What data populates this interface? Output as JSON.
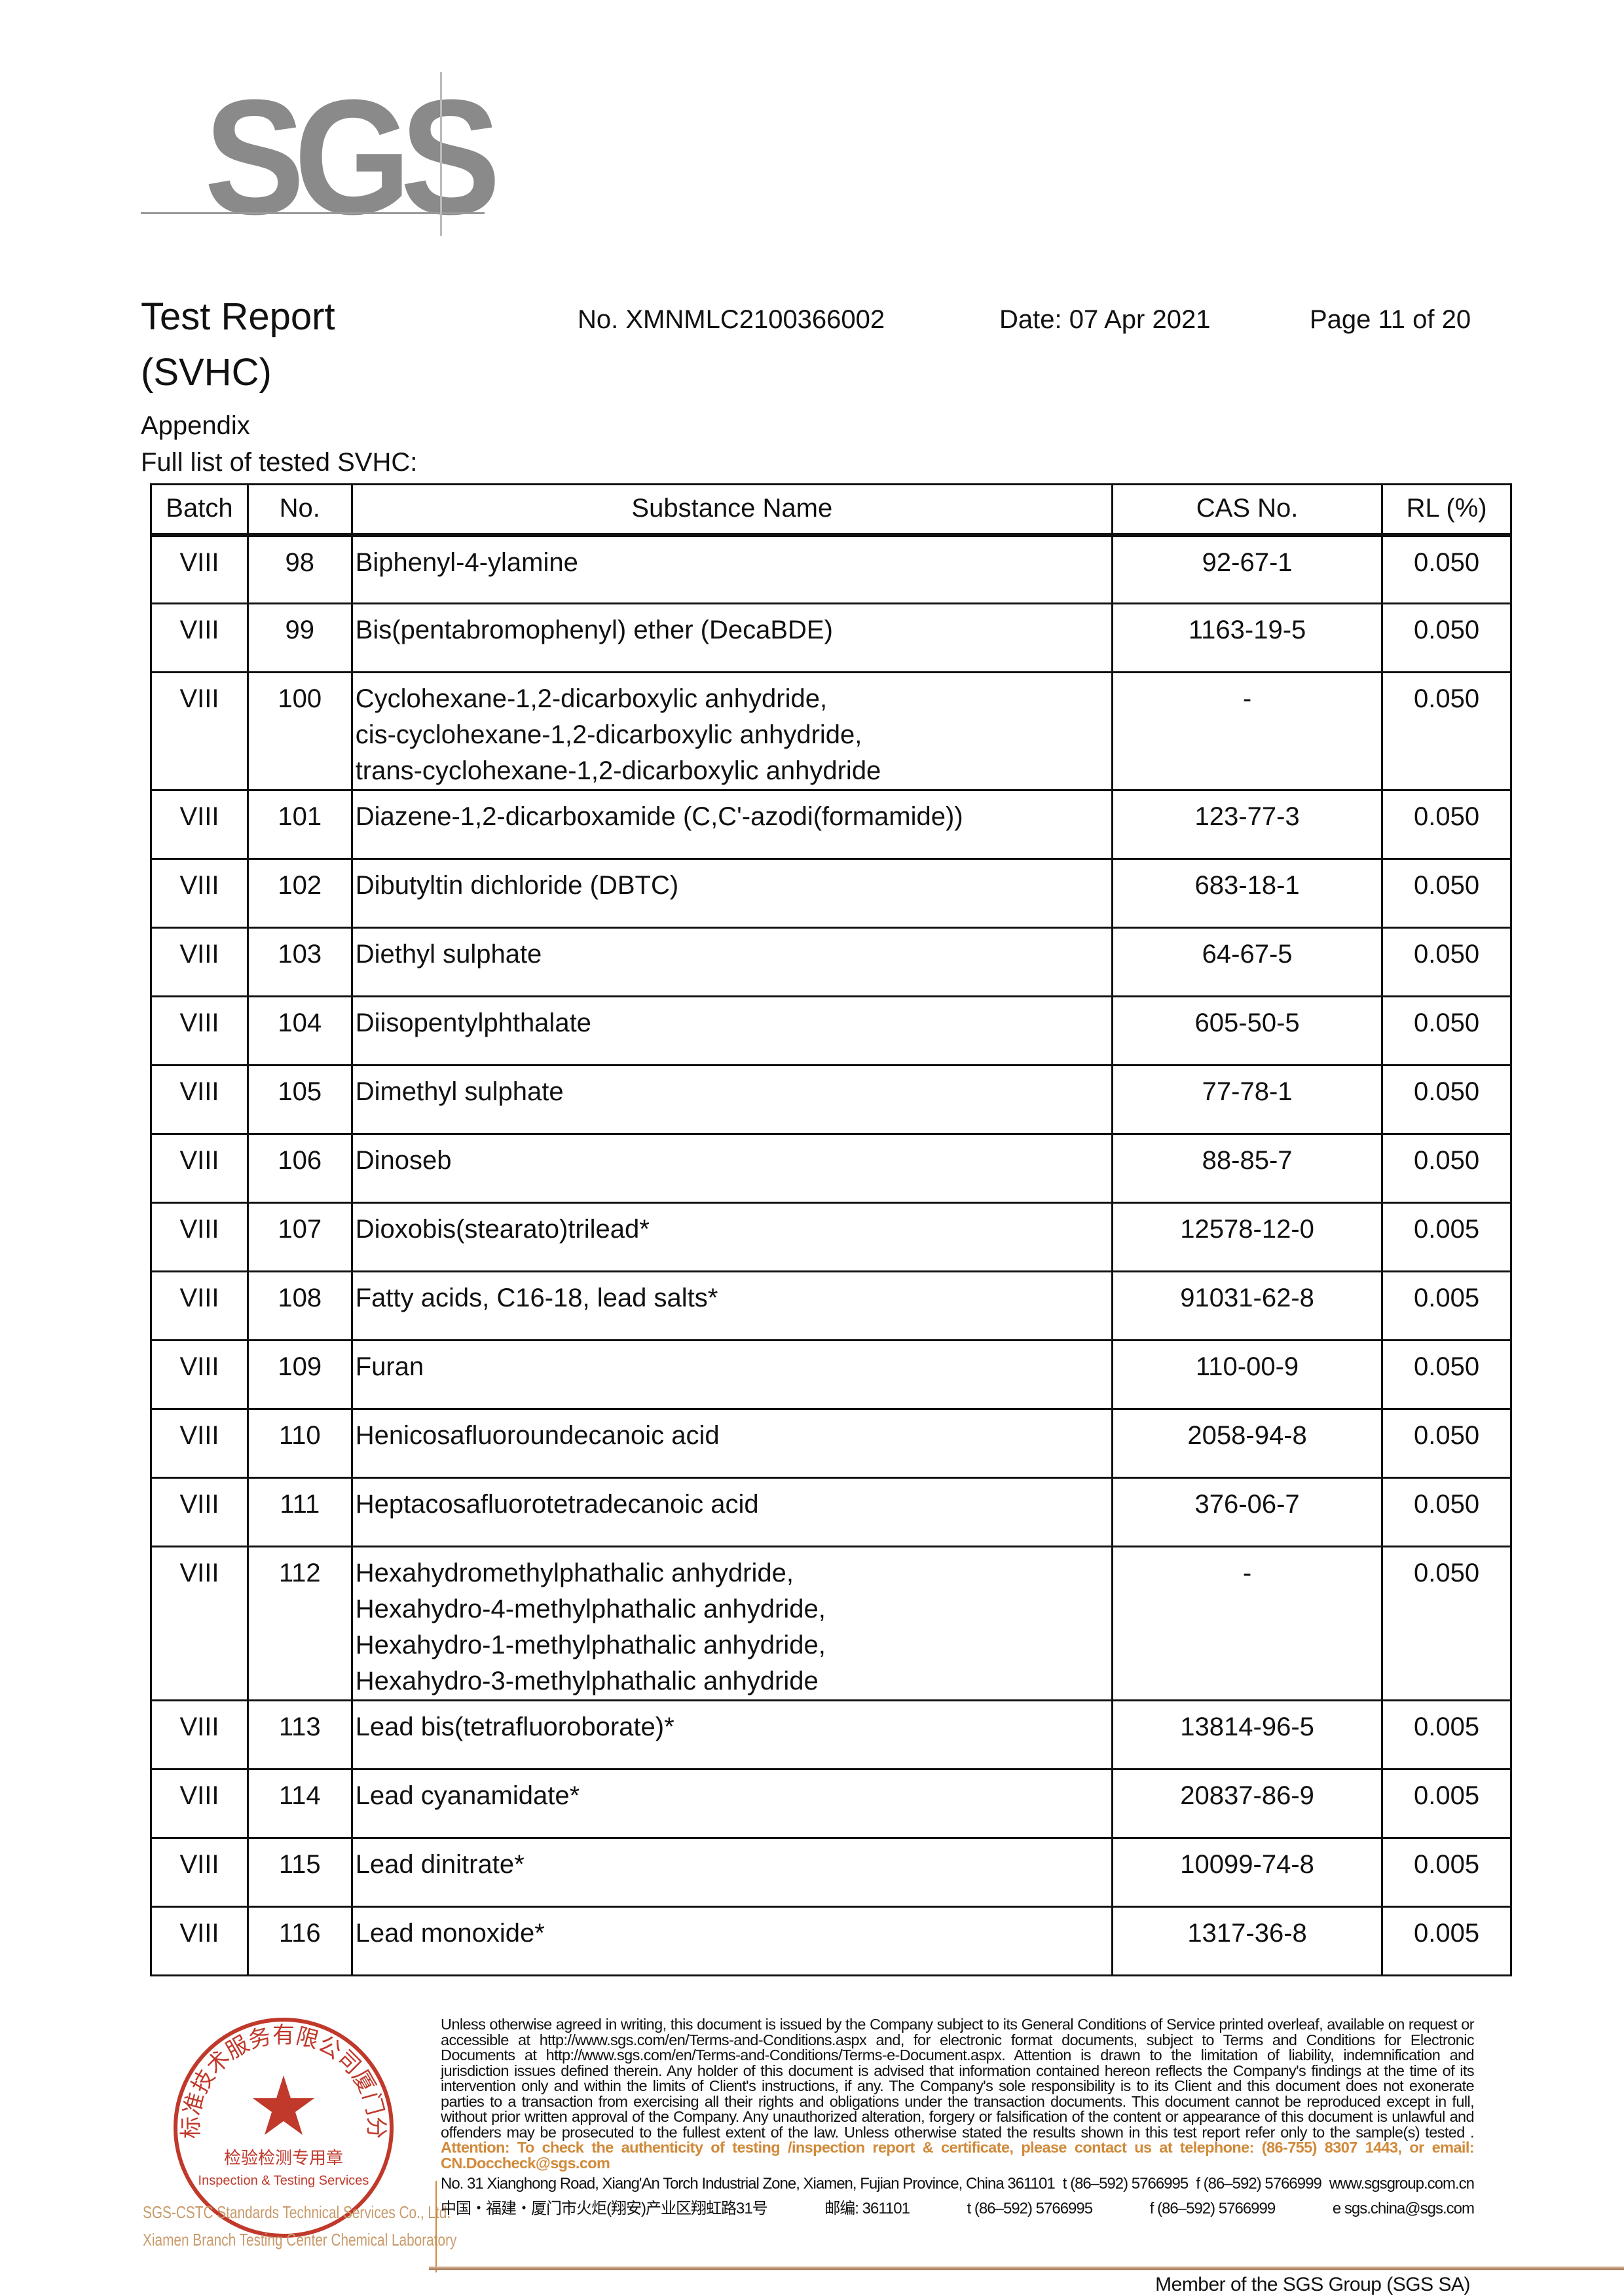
{
  "logo": {
    "text": "SGS",
    "color": "#8a8a8a"
  },
  "header": {
    "title": "Test Report",
    "subtitle": "(SVHC)",
    "report_no": "No. XMNMLC2100366002",
    "date": "Date: 07 Apr 2021",
    "page": "Page 11 of 20"
  },
  "appendix": "Appendix",
  "full_list": "Full list of tested SVHC:",
  "table": {
    "columns": [
      "Batch",
      "No.",
      "Substance Name",
      "CAS No.",
      "RL (%)"
    ],
    "rows": [
      [
        "VIII",
        "98",
        "Biphenyl-4-ylamine",
        "92-67-1",
        "0.050"
      ],
      [
        "VIII",
        "99",
        "Bis(pentabromophenyl) ether (DecaBDE)",
        "1163-19-5",
        "0.050"
      ],
      [
        "VIII",
        "100",
        "Cyclohexane-1,2-dicarboxylic anhydride,\ncis-cyclohexane-1,2-dicarboxylic anhydride,\ntrans-cyclohexane-1,2-dicarboxylic anhydride",
        "-",
        "0.050"
      ],
      [
        "VIII",
        "101",
        "Diazene-1,2-dicarboxamide (C,C'-azodi(formamide))",
        "123-77-3",
        "0.050"
      ],
      [
        "VIII",
        "102",
        "Dibutyltin dichloride (DBTC)",
        "683-18-1",
        "0.050"
      ],
      [
        "VIII",
        "103",
        "Diethyl sulphate",
        "64-67-5",
        "0.050"
      ],
      [
        "VIII",
        "104",
        "Diisopentylphthalate",
        "605-50-5",
        "0.050"
      ],
      [
        "VIII",
        "105",
        "Dimethyl sulphate",
        "77-78-1",
        "0.050"
      ],
      [
        "VIII",
        "106",
        "Dinoseb",
        "88-85-7",
        "0.050"
      ],
      [
        "VIII",
        "107",
        "Dioxobis(stearato)trilead*",
        "12578-12-0",
        "0.005"
      ],
      [
        "VIII",
        "108",
        "Fatty acids, C16-18, lead salts*",
        "91031-62-8",
        "0.005"
      ],
      [
        "VIII",
        "109",
        "Furan",
        "110-00-9",
        "0.050"
      ],
      [
        "VIII",
        "110",
        "Henicosafluoroundecanoic acid",
        "2058-94-8",
        "0.050"
      ],
      [
        "VIII",
        "111",
        "Heptacosafluorotetradecanoic acid",
        "376-06-7",
        "0.050"
      ],
      [
        "VIII",
        "112",
        "Hexahydromethylphathalic anhydride,\nHexahydro-4-methylphathalic anhydride,\nHexahydro-1-methylphathalic anhydride,\nHexahydro-3-methylphathalic anhydride",
        "-",
        "0.050"
      ],
      [
        "VIII",
        "113",
        "Lead bis(tetrafluoroborate)*",
        "13814-96-5",
        "0.005"
      ],
      [
        "VIII",
        "114",
        "Lead cyanamidate*",
        "20837-86-9",
        "0.005"
      ],
      [
        "VIII",
        "115",
        "Lead dinitrate*",
        "10099-74-8",
        "0.005"
      ],
      [
        "VIII",
        "116",
        "Lead monoxide*",
        "1317-36-8",
        "0.005"
      ]
    ]
  },
  "stamp": {
    "text_cn": "通标标准技术服务有限公司厦门分公司 检验检测专用章",
    "text_en": "Inspection & Testing Services",
    "label1": "SGS-CSTC Standards Technical Services Co., Ltd.",
    "label2": "Xiamen Branch Testing Center Chemical Laboratory",
    "color": "#c0392b"
  },
  "footer": {
    "d1": "Unless otherwise agreed in writing, this document is issued by the Company subject to its General Conditions of Service printed overleaf, available on request or accessible at ",
    "link1": "http://www.sgs.com/en/Terms-and-Conditions.aspx",
    "d2": " and, for electronic format documents, subject to Terms and Conditions for Electronic Documents at ",
    "link2": "http://www.sgs.com/en/Terms-and-Conditions/Terms-e-Document.aspx",
    "d3": ". Attention is drawn to the limitation of liability, indemnification and jurisdiction issues defined therein. Any holder of this document is advised that information contained hereon reflects the Company's findings at the time of its intervention only and within the limits of Client's instructions, if any. The Company's sole responsibility is to its Client and this document does not exonerate parties to a transaction from exercising all their rights and obligations under the transaction documents. This document cannot be reproduced except in full, without prior written approval of the Company. Any unauthorized alteration, forgery or falsification of the content or appearance of this document is unlawful and offenders may be prosecuted to the fullest extent of the law. Unless otherwise stated the results shown in this test report refer only to the sample(s) tested .",
    "attention": "Attention: To check the authenticity of testing /inspection report & certificate, please contact us at telephone: (86-755) 8307 1443, or email: ",
    "email": "CN.Doccheck@sgs.com",
    "addr_en": "No. 31 Xianghong Road, Xiang'An Torch Industrial Zone, Xiamen, Fujian Province, China  361101",
    "addr_cn": "中国・福建・厦门市火炬(翔安)产业区翔虹路31号",
    "postcode_cn": "邮编: 361101",
    "tel": "t (86–592) 5766995",
    "fax": "f (86–592) 5766999",
    "web": "www.sgsgroup.com.cn",
    "mail2": "e  sgs.china@sgs.com",
    "member": "Member of the SGS Group (SGS SA)"
  }
}
